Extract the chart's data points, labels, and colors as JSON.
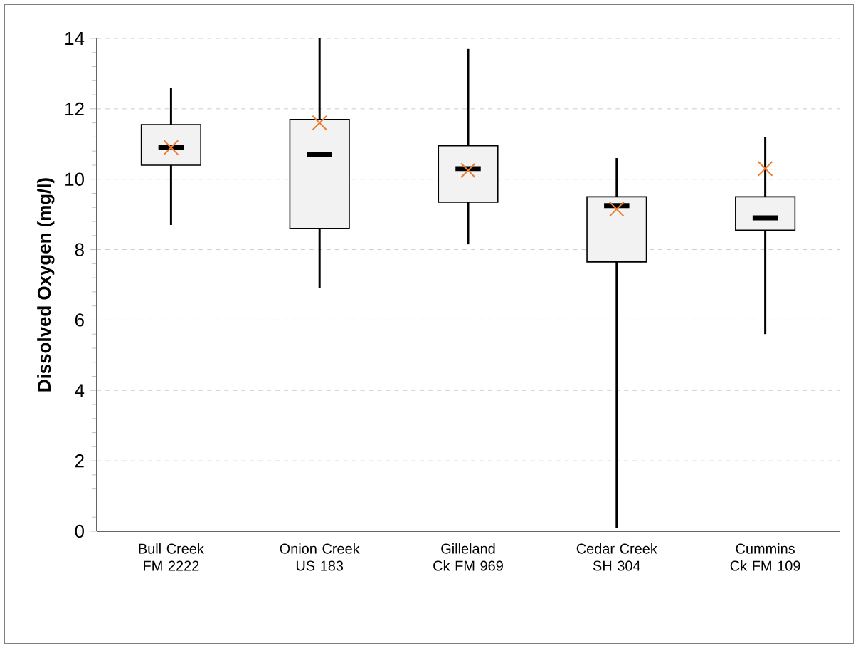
{
  "chart_data": {
    "type": "box",
    "ylabel": "Dissolved Oxygen (mg/l)",
    "categories": [
      "Bull Creek FM 2222",
      "Onion Creek US 183",
      "Gilleland Ck FM 969",
      "Cedar Creek SH 304",
      "Cummins Ck FM 109"
    ],
    "series": [
      {
        "type": "box",
        "color": "#f2f2f2",
        "boxes": [
          {
            "low": 8.7,
            "q1": 10.4,
            "median": 10.9,
            "q3": 11.55,
            "high": 12.6
          },
          {
            "low": 6.9,
            "q1": 8.6,
            "median": 10.7,
            "q3": 11.7,
            "high": 14
          },
          {
            "low": 8.15,
            "q1": 9.35,
            "median": 10.3,
            "q3": 10.95,
            "high": 13.7
          },
          {
            "low": 0.1,
            "q1": 7.65,
            "median": 9.25,
            "q3": 9.5,
            "high": 10.6
          },
          {
            "low": 5.6,
            "q1": 8.55,
            "median": 8.9,
            "q3": 9.5,
            "high": 11.2
          }
        ]
      },
      {
        "type": "scatter",
        "color": "#ed7d31",
        "marker": "cross",
        "x": [
          "Bull Creek FM 2222",
          "Onion Creek US 183",
          "Gilleland Ck FM 969",
          "Cedar Creek SH 304",
          "Cummins Ck FM 109"
        ],
        "values": [
          10.9,
          11.6,
          10.25,
          9.15,
          10.3
        ]
      }
    ],
    "ylim": [
      0,
      14
    ],
    "yticks": [
      0,
      2,
      4,
      6,
      8,
      10,
      12,
      14
    ],
    "grid": "y"
  }
}
